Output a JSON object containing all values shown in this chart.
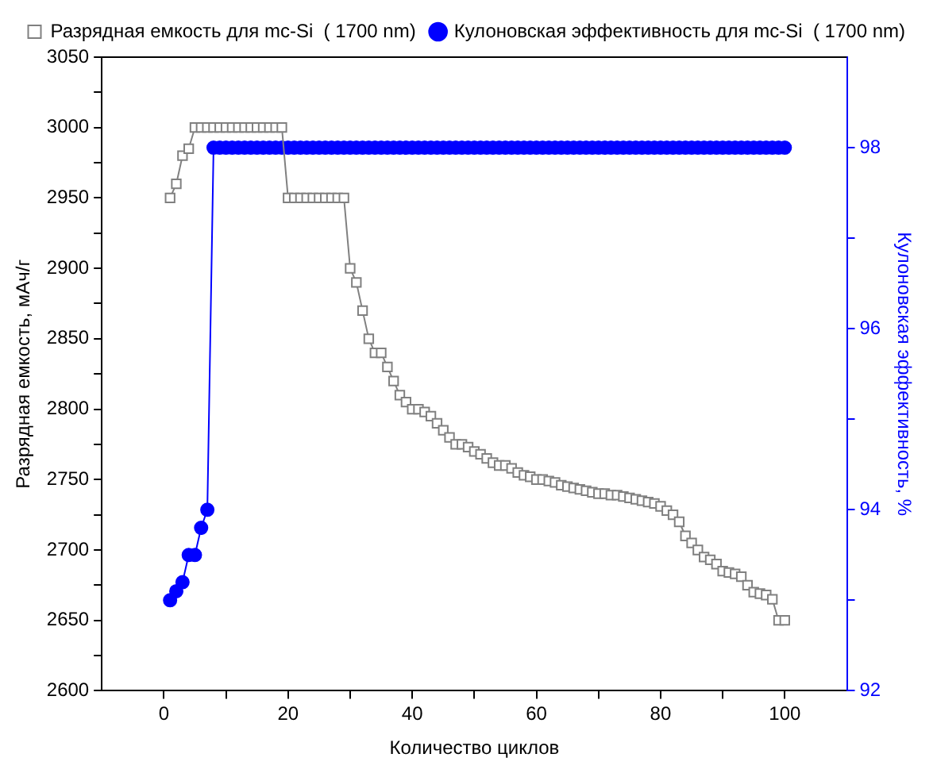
{
  "chart_data": {
    "type": "line",
    "xlabel": "Количество циклов",
    "ylabel": "Разрядная емкость, мАч/г",
    "y2label": "Кулоновская эффективность, %",
    "x": [
      1,
      2,
      3,
      4,
      5,
      6,
      7,
      8,
      9,
      10,
      11,
      12,
      13,
      14,
      15,
      16,
      17,
      18,
      19,
      20,
      21,
      22,
      23,
      24,
      25,
      26,
      27,
      28,
      29,
      30,
      31,
      32,
      33,
      34,
      35,
      36,
      37,
      38,
      39,
      40,
      41,
      42,
      43,
      44,
      45,
      46,
      47,
      48,
      49,
      50,
      51,
      52,
      53,
      54,
      55,
      56,
      57,
      58,
      59,
      60,
      61,
      62,
      63,
      64,
      65,
      66,
      67,
      68,
      69,
      70,
      71,
      72,
      73,
      74,
      75,
      76,
      77,
      78,
      79,
      80,
      81,
      82,
      83,
      84,
      85,
      86,
      87,
      88,
      89,
      90,
      91,
      92,
      93,
      94,
      95,
      96,
      97,
      98,
      99,
      100
    ],
    "series": [
      {
        "name": "Разрядная емкость для mc-Si  ( 1700 nm)",
        "color": "#808080",
        "marker": "square",
        "values": [
          2950,
          2960,
          2980,
          2985,
          3000,
          3000,
          3000,
          3000,
          3000,
          3000,
          3000,
          3000,
          3000,
          3000,
          3000,
          3000,
          3000,
          3000,
          3000,
          2950,
          2950,
          2950,
          2950,
          2950,
          2950,
          2950,
          2950,
          2950,
          2950,
          2900,
          2890,
          2870,
          2850,
          2840,
          2840,
          2830,
          2820,
          2810,
          2805,
          2800,
          2800,
          2798,
          2795,
          2790,
          2785,
          2780,
          2775,
          2775,
          2773,
          2770,
          2768,
          2765,
          2762,
          2760,
          2760,
          2758,
          2755,
          2753,
          2752,
          2750,
          2750,
          2749,
          2748,
          2746,
          2745,
          2744,
          2743,
          2742,
          2741,
          2740,
          2740,
          2739,
          2739,
          2738,
          2737,
          2736,
          2735,
          2734,
          2733,
          2731,
          2728,
          2725,
          2720,
          2710,
          2705,
          2700,
          2695,
          2693,
          2690,
          2685,
          2684,
          2683,
          2681,
          2675,
          2670,
          2669,
          2668,
          2665,
          2650,
          2650
        ]
      },
      {
        "name": "Кулоновская эффективность для mc-Si  ( 1700 nm)",
        "color": "#0000ff",
        "marker": "circle",
        "axis": "y2",
        "values": [
          93.0,
          93.1,
          93.2,
          93.5,
          93.5,
          93.8,
          94.0,
          98,
          98,
          98,
          98,
          98,
          98,
          98,
          98,
          98,
          98,
          98,
          98,
          98,
          98,
          98,
          98,
          98,
          98,
          98,
          98,
          98,
          98,
          98,
          98,
          98,
          98,
          98,
          98,
          98,
          98,
          98,
          98,
          98,
          98,
          98,
          98,
          98,
          98,
          98,
          98,
          98,
          98,
          98,
          98,
          98,
          98,
          98,
          98,
          98,
          98,
          98,
          98,
          98,
          98,
          98,
          98,
          98,
          98,
          98,
          98,
          98,
          98,
          98,
          98,
          98,
          98,
          98,
          98,
          98,
          98,
          98,
          98,
          98,
          98,
          98,
          98,
          98,
          98,
          98,
          98,
          98,
          98,
          98,
          98,
          98,
          98,
          98,
          98,
          98,
          98,
          98,
          98,
          98
        ]
      }
    ],
    "xlim": [
      -10,
      110
    ],
    "xticks": [
      0,
      {
        "value": 10,
        "label": null
      },
      20,
      {
        "value": 30,
        "label": null
      },
      40,
      {
        "value": 50,
        "label": null
      },
      60,
      {
        "value": 70,
        "label": null
      },
      80,
      {
        "value": 90,
        "label": null
      },
      100
    ],
    "ylim": [
      2600,
      3050
    ],
    "yticks": [
      2600,
      {
        "value": 2625,
        "label": null
      },
      2650,
      {
        "value": 2675,
        "label": null
      },
      2700,
      {
        "value": 2725,
        "label": null
      },
      2750,
      {
        "value": 2775,
        "label": null
      },
      2800,
      {
        "value": 2825,
        "label": null
      },
      2850,
      {
        "value": 2875,
        "label": null
      },
      2900,
      {
        "value": 2925,
        "label": null
      },
      2950,
      {
        "value": 2975,
        "label": null
      },
      3000,
      {
        "value": 3025,
        "label": null
      },
      3050
    ],
    "y2lim": [
      92,
      99
    ],
    "y2ticks": [
      92,
      {
        "value": 93,
        "label": null
      },
      94,
      {
        "value": 95,
        "label": null
      },
      96,
      {
        "value": 97,
        "label": null
      },
      98
    ],
    "grid": false,
    "legend": "top right"
  }
}
